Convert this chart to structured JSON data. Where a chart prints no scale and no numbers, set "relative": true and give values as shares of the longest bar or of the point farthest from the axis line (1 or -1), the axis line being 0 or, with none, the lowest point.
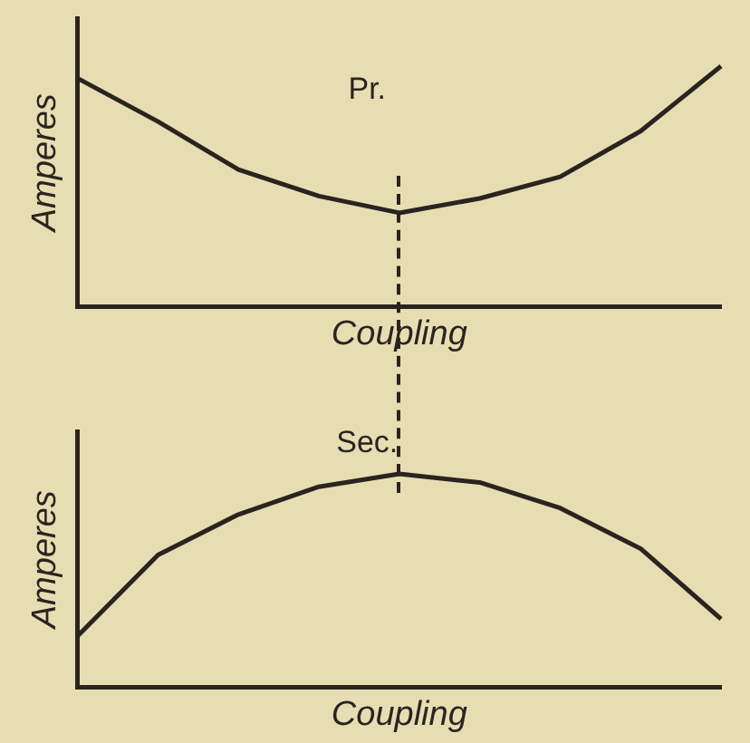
{
  "chart_data": [
    {
      "type": "line",
      "title": "Pr.",
      "xlabel": "Coupling",
      "ylabel": "Amperes",
      "categories": [
        null,
        null,
        null,
        null,
        null,
        null,
        null,
        null,
        null
      ],
      "values": [
        0.95,
        0.77,
        0.57,
        0.46,
        0.39,
        0.45,
        0.54,
        0.73,
        1
      ],
      "color": "#2a2420",
      "relative": true,
      "grid": false,
      "marker": "none",
      "line_style": "solid"
    },
    {
      "type": "line",
      "title": "Sec.",
      "xlabel": "Coupling",
      "ylabel": "Amperes",
      "categories": [
        null,
        null,
        null,
        null,
        null,
        null,
        null,
        null,
        null
      ],
      "values": [
        0.24,
        0.62,
        0.81,
        0.94,
        1,
        0.96,
        0.84,
        0.65,
        0.32
      ],
      "color": "#2a2420",
      "relative": true,
      "grid": false,
      "marker": "none",
      "line_style": "solid"
    }
  ]
}
